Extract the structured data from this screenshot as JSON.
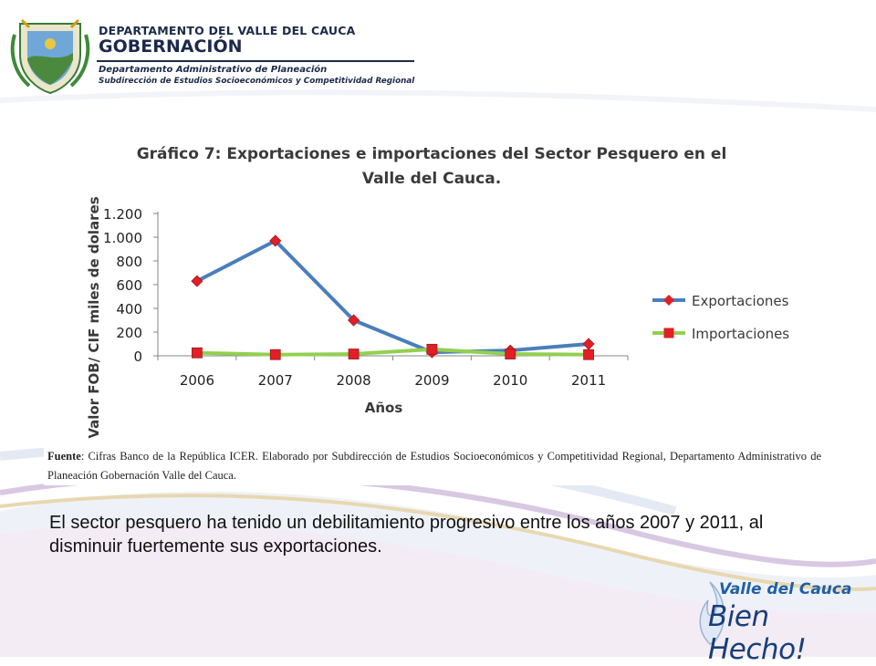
{
  "header": {
    "department": "DEPARTAMENTO DEL VALLE DEL CAUCA",
    "government": "GOBERNACIÓN",
    "admin_dept": "Departamento  Administrativo de Planeación",
    "subdirection": "Subdirección de Estudios Socioeconómicos y Competitividad Regional"
  },
  "chart_data": {
    "type": "line",
    "title_line1": "Gráfico 7: Exportaciones e importaciones del Sector Pesquero en el",
    "title_line2": "Valle del Cauca.",
    "xlabel": "Años",
    "ylabel": "Valor FOB/ CIF miles de dolares",
    "categories": [
      "2006",
      "2007",
      "2008",
      "2009",
      "2010",
      "2011"
    ],
    "ylim": [
      0,
      1200
    ],
    "yticks": [
      0,
      200,
      400,
      600,
      800,
      1000,
      1200
    ],
    "ytick_labels": [
      "0",
      "200",
      "400",
      "600",
      "800",
      "1.000",
      "1.200"
    ],
    "grid": false,
    "legend_position": "right",
    "series": [
      {
        "name": "Exportaciones",
        "values": [
          630,
          970,
          300,
          30,
          45,
          100
        ],
        "color": "#4a7ebb",
        "marker": "diamond",
        "marker_color": "#e21e26"
      },
      {
        "name": "Importaciones",
        "values": [
          25,
          10,
          15,
          55,
          15,
          10
        ],
        "color": "#92d050",
        "marker": "square",
        "marker_color": "#e21e26"
      }
    ]
  },
  "source": {
    "label": "Fuente",
    "text": ": Cifras Banco de la República ICER. Elaborado por Subdirección de Estudios Socioeconómicos y Competitividad Regional, Departamento Administrativo de Planeación Gobernación Valle del Cauca."
  },
  "body_text": "El sector pesquero ha tenido un debilitamiento progresivo entre los años 2007 y 2011, al disminuir fuertemente sus exportaciones.",
  "logo": {
    "line1": "Valle del Cauca",
    "line2": "Bien Hecho!"
  }
}
